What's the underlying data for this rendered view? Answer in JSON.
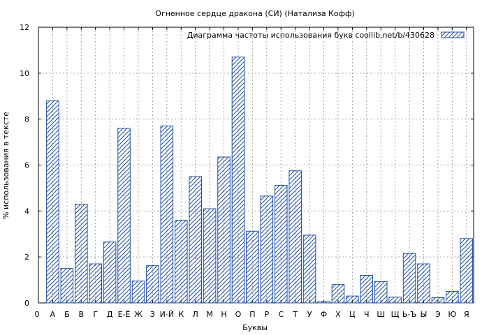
{
  "chart_data": {
    "type": "bar",
    "title": "Огненное сердце дракона (СИ) (Натализа Кофф)",
    "xlabel": "Буквы",
    "ylabel": "% использования в тексте",
    "legend": {
      "label": "Диаграмма частоты использования букв  coollib.net/b/430628",
      "position": "top-right"
    },
    "ylim": [
      0,
      12
    ],
    "yticks": [
      0,
      2,
      4,
      6,
      8,
      10,
      12
    ],
    "grid": true,
    "x_axis_origin_label": "0",
    "categories": [
      "А",
      "Б",
      "В",
      "Г",
      "Д",
      "Е-Ё",
      "Ж",
      "З",
      "И-Й",
      "К",
      "Л",
      "М",
      "Н",
      "О",
      "П",
      "Р",
      "С",
      "Т",
      "У",
      "Ф",
      "Х",
      "Ц",
      "Ч",
      "Ш",
      "Щ",
      "Ь-Ъ",
      "Ы",
      "Э",
      "Ю",
      "Я"
    ],
    "values": [
      8.8,
      1.5,
      4.3,
      1.7,
      2.65,
      7.6,
      0.95,
      1.62,
      7.7,
      3.6,
      5.5,
      4.1,
      6.35,
      10.7,
      3.12,
      4.65,
      5.12,
      5.75,
      2.95,
      0.05,
      0.8,
      0.3,
      1.2,
      0.93,
      0.25,
      2.15,
      1.7,
      0.23,
      0.5,
      2.8
    ],
    "colors": {
      "bar_stroke": "#1f4fa8",
      "grid": "#a0a0a0"
    }
  }
}
